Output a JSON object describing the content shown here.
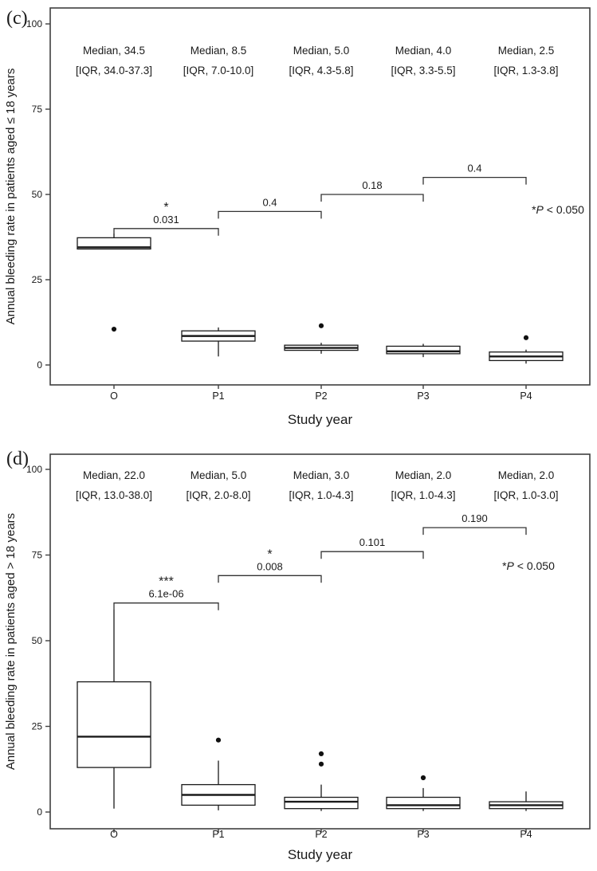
{
  "colors": {
    "axis": "#3f3f3f",
    "tick_label": "#4d4d4d",
    "box_stroke": "#1a1a1a",
    "bracket": "#333333",
    "text": "#111111"
  },
  "chart_data": [
    {
      "type": "boxplot",
      "panel_label": "(c)",
      "xlabel": "Study year",
      "ylabel": "Annual bleeding rate in patients aged ≤ 18 years",
      "ylim": [
        0,
        100
      ],
      "yticks": [
        0,
        25,
        50,
        75,
        100
      ],
      "categories": [
        "O",
        "P1",
        "P2",
        "P3",
        "P4"
      ],
      "boxes": [
        {
          "category": "O",
          "median": 34.5,
          "q1": 34.0,
          "q3": 37.3,
          "whisker_low": 34.0,
          "whisker_high": 38.5,
          "outliers": [
            10.5
          ],
          "median_label": "Median, 34.5",
          "iqr_label": "[IQR, 34.0-37.3]"
        },
        {
          "category": "P1",
          "median": 8.5,
          "q1": 7.0,
          "q3": 10.0,
          "whisker_low": 2.5,
          "whisker_high": 11.0,
          "outliers": [],
          "median_label": "Median, 8.5",
          "iqr_label": "[IQR, 7.0-10.0]"
        },
        {
          "category": "P2",
          "median": 5.0,
          "q1": 4.3,
          "q3": 5.8,
          "whisker_low": 3.3,
          "whisker_high": 6.5,
          "outliers": [
            11.5
          ],
          "median_label": "Median, 5.0",
          "iqr_label": "[IQR, 4.3-5.8]"
        },
        {
          "category": "P3",
          "median": 4.0,
          "q1": 3.3,
          "q3": 5.5,
          "whisker_low": 2.3,
          "whisker_high": 6.2,
          "outliers": [],
          "median_label": "Median, 4.0",
          "iqr_label": "[IQR, 3.3-5.5]"
        },
        {
          "category": "P4",
          "median": 2.5,
          "q1": 1.3,
          "q3": 3.8,
          "whisker_low": 0.4,
          "whisker_high": 4.5,
          "outliers": [
            8.0
          ],
          "median_label": "Median, 2.5",
          "iqr_label": "[IQR, 1.3-3.8]"
        }
      ],
      "comparisons": [
        {
          "from": "O",
          "to": "P1",
          "p_label": "0.031",
          "stars": "*",
          "height": 40
        },
        {
          "from": "P1",
          "to": "P2",
          "p_label": "0.4",
          "stars": "",
          "height": 45
        },
        {
          "from": "P2",
          "to": "P3",
          "p_label": "0.18",
          "stars": "",
          "height": 50
        },
        {
          "from": "P3",
          "to": "P4",
          "p_label": "0.4",
          "stars": "",
          "height": 55
        }
      ],
      "note": {
        "star": "*",
        "p": "P",
        "rest": " < 0.050"
      }
    },
    {
      "type": "boxplot",
      "panel_label": "(d)",
      "xlabel": "Study year",
      "ylabel": "Annual bleeding rate in patients aged > 18 years",
      "ylim": [
        0,
        100
      ],
      "yticks": [
        0,
        25,
        50,
        75,
        100
      ],
      "categories": [
        "O",
        "P1",
        "P2",
        "P3",
        "P4"
      ],
      "boxes": [
        {
          "category": "O",
          "median": 22.0,
          "q1": 13.0,
          "q3": 38.0,
          "whisker_low": 1.0,
          "whisker_high": 59.0,
          "outliers": [],
          "median_label": "Median, 22.0",
          "iqr_label": "[IQR, 13.0-38.0]"
        },
        {
          "category": "P1",
          "median": 5.0,
          "q1": 2.0,
          "q3": 8.0,
          "whisker_low": 0.5,
          "whisker_high": 15.0,
          "outliers": [
            21.0
          ],
          "median_label": "Median, 5.0",
          "iqr_label": "[IQR, 2.0-8.0]"
        },
        {
          "category": "P2",
          "median": 3.0,
          "q1": 1.0,
          "q3": 4.3,
          "whisker_low": 0.3,
          "whisker_high": 8.0,
          "outliers": [
            17.0,
            14.0
          ],
          "median_label": "Median, 3.0",
          "iqr_label": "[IQR, 1.0-4.3]"
        },
        {
          "category": "P3",
          "median": 2.0,
          "q1": 1.0,
          "q3": 4.3,
          "whisker_low": 0.3,
          "whisker_high": 7.0,
          "outliers": [
            10.0
          ],
          "median_label": "Median, 2.0",
          "iqr_label": "[IQR, 1.0-4.3]"
        },
        {
          "category": "P4",
          "median": 2.0,
          "q1": 1.0,
          "q3": 3.0,
          "whisker_low": 0.3,
          "whisker_high": 6.0,
          "outliers": [],
          "median_label": "Median, 2.0",
          "iqr_label": "[IQR, 1.0-3.0]"
        }
      ],
      "comparisons": [
        {
          "from": "O",
          "to": "P1",
          "p_label": "6.1e-06",
          "stars": "***",
          "height": 61
        },
        {
          "from": "P1",
          "to": "P2",
          "p_label": "0.008",
          "stars": "*",
          "height": 69
        },
        {
          "from": "P2",
          "to": "P3",
          "p_label": "0.101",
          "stars": "",
          "height": 76
        },
        {
          "from": "P3",
          "to": "P4",
          "p_label": "0.190",
          "stars": "",
          "height": 83
        }
      ],
      "note": {
        "star": "*",
        "p": "P",
        "rest": " < 0.050"
      }
    }
  ]
}
